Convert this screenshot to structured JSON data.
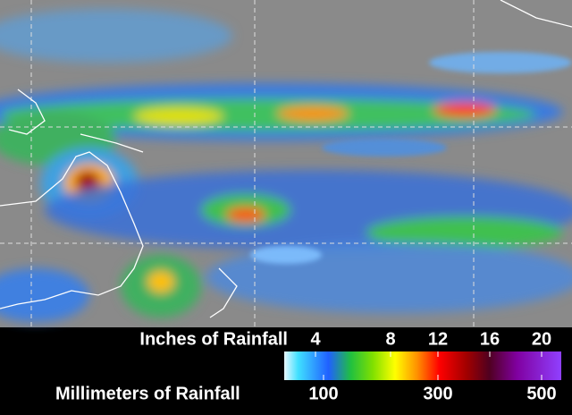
{
  "legend": {
    "inches_label": "Inches of Rainfall",
    "inches_ticks": [
      4,
      8,
      12,
      16,
      20
    ],
    "mm_label": "Millimeters of Rainfall",
    "mm_ticks": [
      100,
      300,
      500
    ]
  }
}
